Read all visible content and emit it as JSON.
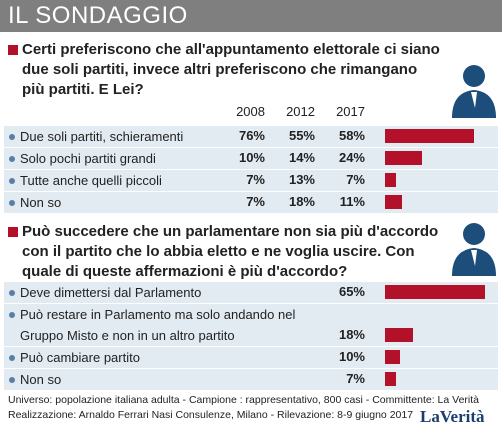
{
  "header": "IL SONDAGGIO",
  "chart_data": [
    {
      "type": "bar",
      "title": "Certi preferiscono che all'appuntamento elettorale ci siano due soli partiti, invece altri preferiscono che rimangano più partiti. E Lei?",
      "categories": [
        "Due soli partiti, schieramenti",
        "Solo pochi partiti grandi",
        "Tutte anche quelli piccoli",
        "Non so"
      ],
      "series": [
        {
          "name": "2008",
          "values": [
            76,
            10,
            7,
            7
          ],
          "value_labels": [
            "76%",
            "10%",
            "7%",
            "7%"
          ]
        },
        {
          "name": "2012",
          "values": [
            55,
            14,
            13,
            18
          ],
          "value_labels": [
            "55%",
            "14%",
            "13%",
            "18%"
          ]
        },
        {
          "name": "2017",
          "color": "#b3102a",
          "values": [
            58,
            24,
            7,
            11
          ],
          "value_labels": [
            "58%",
            "24%",
            "7%",
            "11%"
          ]
        }
      ],
      "xlim": [
        0,
        75
      ]
    },
    {
      "type": "bar",
      "title": "Può succedere che un parlamentare non sia più d'accordo con il partito che lo abbia eletto e ne voglia uscire. Con quale di queste affermazioni è più d'accordo?",
      "categories": [
        "Deve dimettersi dal Parlamento",
        "Può restare in Parlamento ma solo andando nel Gruppo Misto e non in un altro partito",
        "Può cambiare partito",
        "Non so"
      ],
      "series": [
        {
          "color": "#b3102a",
          "values": [
            65,
            18,
            10,
            7
          ],
          "value_labels": [
            "65%",
            "18%",
            "10%",
            "7%"
          ]
        }
      ],
      "xlim": [
        0,
        75
      ]
    }
  ],
  "footer": {
    "universe": "Universo: popolazione italiana adulta - Campione : rappresentativo, 800 casi - Committente: La Verità",
    "production": "Realizzazione: Arnaldo Ferrari Nasi Consulenze, Milano - Rilevazione: 8-9 giugno 2017",
    "logo": "LaVerità"
  }
}
